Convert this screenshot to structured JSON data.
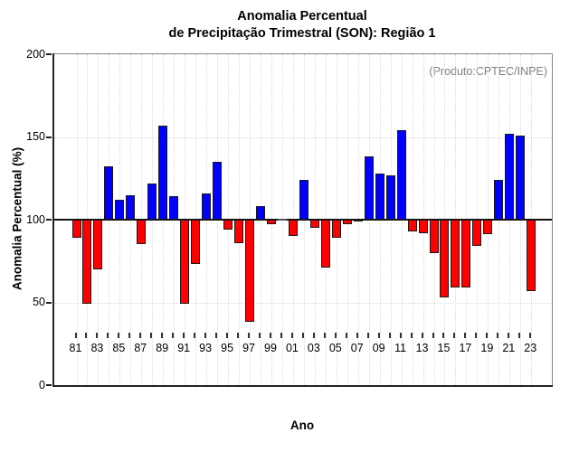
{
  "title": {
    "line1": "Anomalia Percentual",
    "line2": "de Precipitação Trimestral (SON): Região 1"
  },
  "annotation": "(Produto:CPTEC/INPE)",
  "chart_data": {
    "type": "bar",
    "title": "Anomalia Percentual de Precipitação Trimestral (SON): Região 1",
    "xlabel": "Ano",
    "ylabel": "Anomalia Percentual (%)",
    "ylim": [
      0,
      200
    ],
    "yticks": [
      0,
      50,
      100,
      150,
      200
    ],
    "baseline": 100,
    "grid": {
      "horizontal_dotted_at": [
        50,
        150
      ],
      "vertical_dotted_every_year": true
    },
    "legend_position": "none",
    "x_tick_labels": [
      "81",
      "83",
      "85",
      "87",
      "89",
      "91",
      "93",
      "95",
      "97",
      "99",
      "01",
      "03",
      "05",
      "07",
      "09",
      "11",
      "13",
      "15",
      "17",
      "19",
      "21",
      "23"
    ],
    "categories": [
      1981,
      1982,
      1983,
      1984,
      1985,
      1986,
      1987,
      1988,
      1989,
      1990,
      1991,
      1992,
      1993,
      1994,
      1995,
      1996,
      1997,
      1998,
      1999,
      2000,
      2001,
      2002,
      2003,
      2004,
      2005,
      2006,
      2007,
      2008,
      2009,
      2010,
      2011,
      2012,
      2013,
      2014,
      2015,
      2016,
      2017,
      2018,
      2019,
      2020,
      2021,
      2022,
      2023
    ],
    "values": [
      89,
      49,
      70,
      132,
      112,
      115,
      85,
      122,
      157,
      114,
      49,
      73,
      116,
      135,
      94,
      86,
      38,
      108,
      97,
      100,
      90,
      124,
      95,
      71,
      89,
      97,
      99,
      138,
      128,
      127,
      154,
      93,
      92,
      80,
      53,
      59,
      59,
      84,
      91,
      124,
      152,
      151,
      57
    ],
    "colors": {
      "above_baseline": "#0000ff",
      "below_baseline": "#ff0000",
      "bar_border": "#1a1a1a",
      "annotation_text": "#808080",
      "gridline": "#d9d9d9"
    }
  }
}
